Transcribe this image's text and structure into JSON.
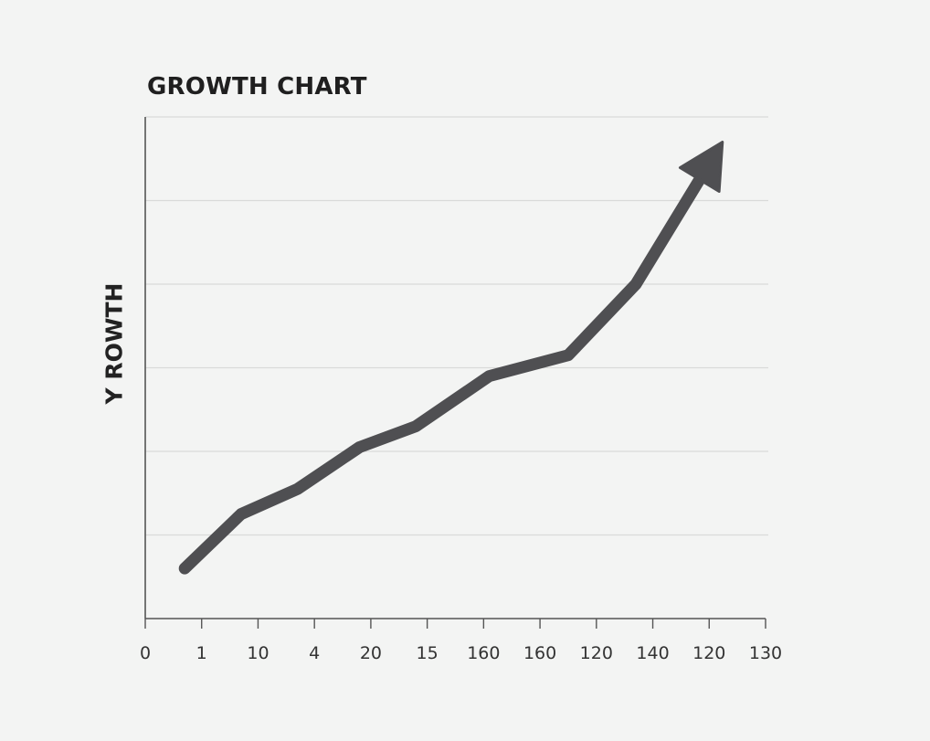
{
  "chart_data": {
    "type": "line",
    "title": "GROWTH CHART",
    "xlabel": "",
    "ylabel": "Y ROWTH",
    "x_tick_labels": [
      "0",
      "1",
      "10",
      "4",
      "20",
      "15",
      "160",
      "160",
      "120",
      "140",
      "120",
      "130"
    ],
    "series": [
      {
        "x": [
          0.7,
          1.7,
          2.7,
          3.8,
          4.8,
          6.1,
          7.5,
          8.7,
          10.1
        ],
        "y": [
          0.6,
          1.25,
          1.55,
          2.05,
          2.3,
          2.9,
          3.15,
          4.0,
          5.55
        ]
      }
    ],
    "end_marker": "arrow",
    "xlim": [
      0,
      11
    ],
    "ylim": [
      0,
      6
    ],
    "grid": true,
    "colors": {
      "line": "#4f4f52",
      "grid": "#d9dad9",
      "axis": "#555555",
      "background": "#f3f4f3"
    }
  }
}
